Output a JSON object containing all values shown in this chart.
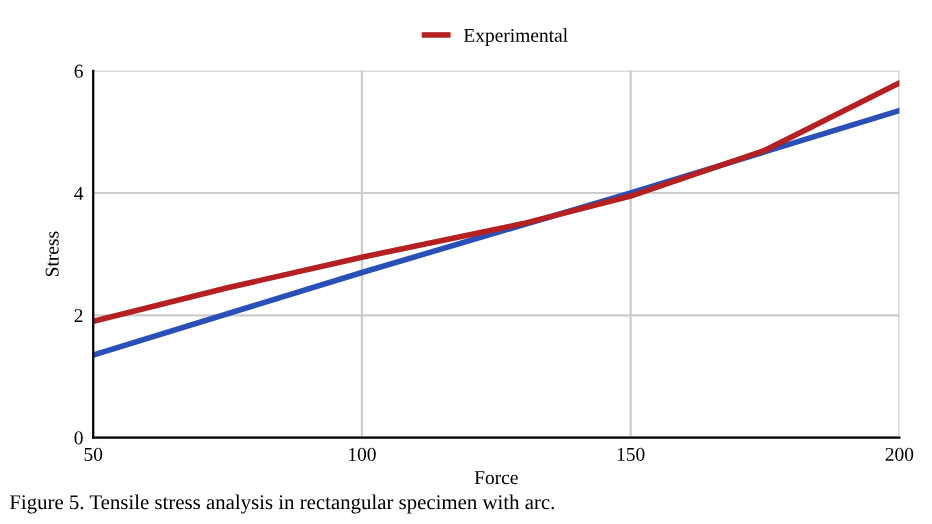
{
  "chart_data": {
    "type": "line",
    "xlabel": "Force",
    "ylabel": "Stress",
    "xlim": [
      50,
      200
    ],
    "ylim": [
      0,
      6
    ],
    "xticks": [
      50,
      100,
      150,
      200
    ],
    "yticks": [
      0,
      2,
      4,
      6
    ],
    "grid": true,
    "legend": "top",
    "line_style": "solid",
    "marker": "none",
    "series": [
      {
        "color": "#2850b8",
        "x": [
          50,
          100,
          150,
          200
        ],
        "values": [
          1.35,
          2.7,
          4.0,
          5.35
        ]
      },
      {
        "name": "Experimental",
        "color": "#b52020",
        "x": [
          50,
          75,
          100,
          130,
          150,
          175,
          200
        ],
        "values": [
          1.9,
          2.45,
          2.95,
          3.5,
          3.95,
          4.7,
          5.8
        ]
      }
    ],
    "annotations": [
      "Figure 5. Tensile stress analysis in rectangular specimen with arc."
    ]
  }
}
